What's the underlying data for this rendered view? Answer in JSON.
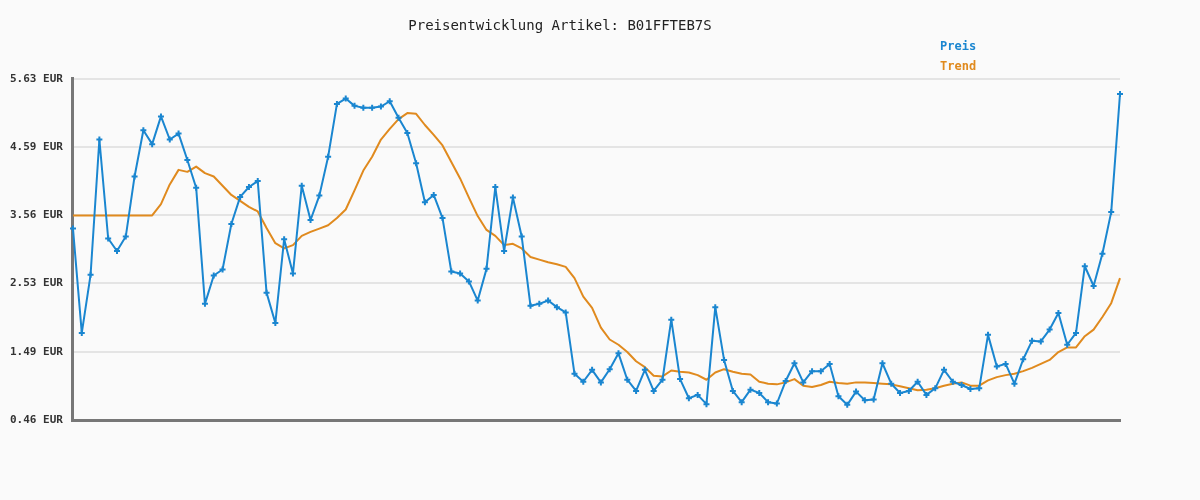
{
  "chart_data": {
    "type": "line",
    "title": "Preisentwicklung Artikel: B01FFTEB7S",
    "categories": [
      null,
      null,
      null,
      null,
      null,
      null,
      null,
      null,
      null,
      null,
      null,
      null,
      null,
      null,
      null,
      null,
      null,
      null,
      null,
      null,
      null,
      null,
      null,
      null,
      null,
      null,
      null,
      null,
      null,
      null,
      null,
      null,
      null,
      null,
      null,
      null,
      null,
      null,
      null,
      null,
      null,
      null,
      null,
      null,
      null,
      null,
      null,
      null,
      null,
      null,
      null,
      null,
      null,
      null,
      null,
      null,
      null,
      null,
      null,
      null,
      null,
      null,
      null,
      null,
      null,
      null,
      null,
      null,
      null,
      null,
      null,
      null,
      null,
      null,
      null,
      null,
      null,
      null,
      null,
      null,
      null,
      null,
      null,
      null,
      null,
      null,
      null,
      null,
      null,
      null,
      null,
      null,
      null,
      null,
      null,
      null,
      null,
      null,
      null,
      null,
      null,
      null,
      null,
      null,
      null,
      null,
      null,
      null,
      null,
      null,
      null,
      null,
      null,
      null,
      null,
      null,
      null,
      null,
      null,
      null
    ],
    "series": [
      {
        "name": "Preis",
        "color": "#1a86d0",
        "marker": "cross",
        "values": [
          3.36,
          1.78,
          2.66,
          4.71,
          3.21,
          3.02,
          3.24,
          4.15,
          4.85,
          4.64,
          5.06,
          4.71,
          4.8,
          4.4,
          3.98,
          2.22,
          2.65,
          2.74,
          3.43,
          3.84,
          3.99,
          4.08,
          2.39,
          1.93,
          3.2,
          2.68,
          4.01,
          3.49,
          3.86,
          4.45,
          5.25,
          5.33,
          5.22,
          5.19,
          5.19,
          5.21,
          5.29,
          5.04,
          4.81,
          4.35,
          3.76,
          3.87,
          3.52,
          2.71,
          2.68,
          2.56,
          2.27,
          2.75,
          3.99,
          3.02,
          3.83,
          3.24,
          2.19,
          2.22,
          2.27,
          2.17,
          2.09,
          1.16,
          1.04,
          1.22,
          1.03,
          1.23,
          1.47,
          1.07,
          0.9,
          1.22,
          0.9,
          1.07,
          1.98,
          1.08,
          0.79,
          0.84,
          0.7,
          2.17,
          1.37,
          0.9,
          0.73,
          0.92,
          0.87,
          0.73,
          0.71,
          1.05,
          1.32,
          1.03,
          1.2,
          1.2,
          1.31,
          0.82,
          0.69,
          0.89,
          0.76,
          0.77,
          1.32,
          1.01,
          0.87,
          0.9,
          1.04,
          0.84,
          0.94,
          1.22,
          1.04,
          0.99,
          0.93,
          0.94,
          1.75,
          1.27,
          1.31,
          1.01,
          1.38,
          1.66,
          1.65,
          1.83,
          2.08,
          1.6,
          1.78,
          2.79,
          2.49,
          2.98,
          3.61,
          5.4
        ]
      },
      {
        "name": "Trend",
        "color": "#e08a1e",
        "marker": "none",
        "values": [
          3.56,
          3.56,
          3.56,
          3.56,
          3.56,
          3.56,
          3.56,
          3.56,
          3.56,
          3.56,
          3.73,
          4.03,
          4.25,
          4.22,
          4.3,
          4.2,
          4.15,
          4.01,
          3.87,
          3.78,
          3.69,
          3.62,
          3.37,
          3.14,
          3.06,
          3.11,
          3.25,
          3.31,
          3.36,
          3.41,
          3.52,
          3.65,
          3.94,
          4.24,
          4.45,
          4.71,
          4.87,
          5.02,
          5.11,
          5.1,
          4.93,
          4.78,
          4.62,
          4.37,
          4.12,
          3.83,
          3.55,
          3.34,
          3.25,
          3.11,
          3.13,
          3.06,
          2.93,
          2.89,
          2.85,
          2.82,
          2.78,
          2.61,
          2.33,
          2.16,
          1.86,
          1.68,
          1.6,
          1.49,
          1.35,
          1.26,
          1.13,
          1.12,
          1.21,
          1.19,
          1.18,
          1.14,
          1.07,
          1.18,
          1.23,
          1.19,
          1.16,
          1.15,
          1.04,
          1.01,
          1.0,
          1.03,
          1.08,
          0.98,
          0.96,
          0.99,
          1.04,
          1.02,
          1.01,
          1.03,
          1.03,
          1.02,
          1.01,
          1.0,
          0.97,
          0.94,
          0.91,
          0.92,
          0.94,
          0.98,
          1.01,
          1.03,
          0.98,
          0.98,
          1.06,
          1.11,
          1.14,
          1.16,
          1.2,
          1.25,
          1.31,
          1.37,
          1.49,
          1.56,
          1.56,
          1.73,
          1.83,
          2.02,
          2.23,
          2.61
        ]
      }
    ],
    "ylim": [
      0.46,
      5.63
    ],
    "yticks": [
      {
        "value": 0.46,
        "label": "0.46 EUR"
      },
      {
        "value": 1.49,
        "label": "1.49 EUR"
      },
      {
        "value": 2.53,
        "label": "2.53 EUR"
      },
      {
        "value": 3.56,
        "label": "3.56 EUR"
      },
      {
        "value": 4.59,
        "label": "4.59 EUR"
      },
      {
        "value": 5.63,
        "label": "5.63 EUR"
      }
    ],
    "grid": "y",
    "legend": "top right",
    "tick_labels": "y",
    "line_style": "solid"
  }
}
